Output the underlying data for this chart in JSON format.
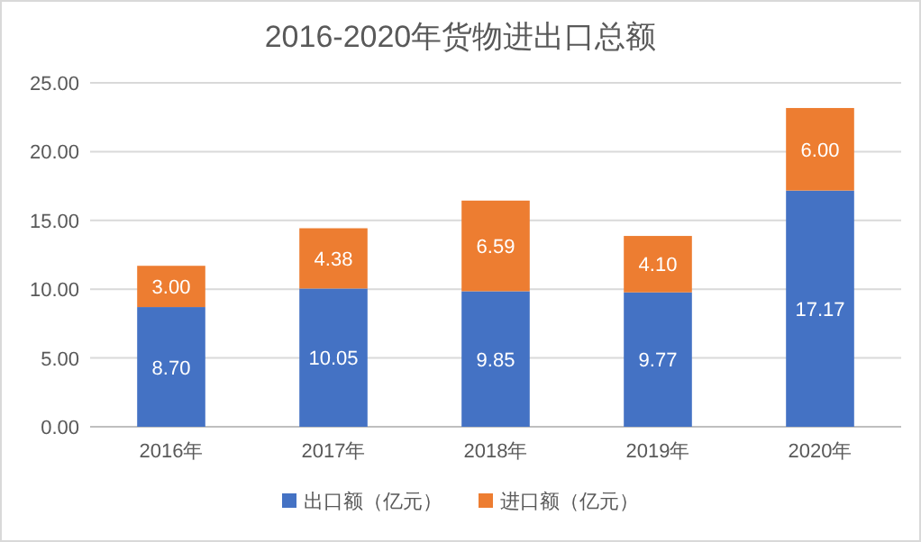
{
  "chart_data": {
    "type": "bar",
    "title": "2016-2020年货物进出口总额",
    "stacked": true,
    "categories": [
      "2016年",
      "2017年",
      "2018年",
      "2019年",
      "2020年"
    ],
    "series": [
      {
        "name": "出口额（亿元）",
        "color": "#4472c4",
        "values": [
          8.7,
          10.05,
          9.85,
          9.77,
          17.17
        ],
        "value_labels": [
          "8.70",
          "10.05",
          "9.85",
          "9.77",
          "17.17"
        ]
      },
      {
        "name": "进口额（亿元）",
        "color": "#ed7d31",
        "values": [
          3.0,
          4.38,
          6.59,
          4.1,
          6.0
        ],
        "value_labels": [
          "3.00",
          "4.38",
          "6.59",
          "4.10",
          "6.00"
        ]
      }
    ],
    "ylim": [
      0,
      25
    ],
    "yticks": [
      {
        "value": 0,
        "label": "0.00"
      },
      {
        "value": 5,
        "label": "5.00"
      },
      {
        "value": 10,
        "label": "10.00"
      },
      {
        "value": 15,
        "label": "15.00"
      },
      {
        "value": 20,
        "label": "20.00"
      },
      {
        "value": 25,
        "label": "25.00"
      }
    ],
    "grid": "y",
    "legend": "bottom"
  }
}
